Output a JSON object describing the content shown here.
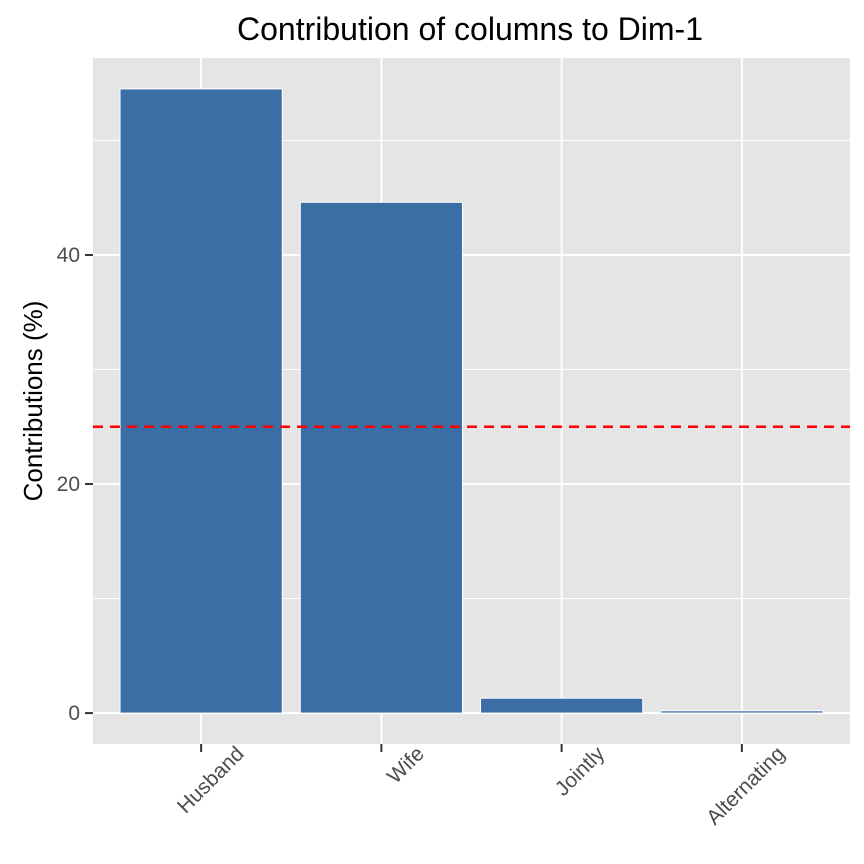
{
  "chart_data": {
    "type": "bar",
    "title": "Contribution of columns to Dim-1",
    "xlabel": "",
    "ylabel": "Contributions (%)",
    "categories": [
      "Husband",
      "Wife",
      "Jointly",
      "Alternating"
    ],
    "values": [
      54.5,
      44.6,
      1.3,
      0.2
    ],
    "ylim": [
      -2.7,
      57.2
    ],
    "yticks": [
      0,
      20,
      40
    ],
    "ytick_labels": [
      "0",
      "20",
      "40"
    ],
    "reference_line": {
      "value": 25,
      "style": "dashed",
      "color": "#ff0000"
    },
    "bar_color": "#3a6ea5",
    "panel_background": "#e5e5e5",
    "grid": true,
    "legend": "none"
  }
}
